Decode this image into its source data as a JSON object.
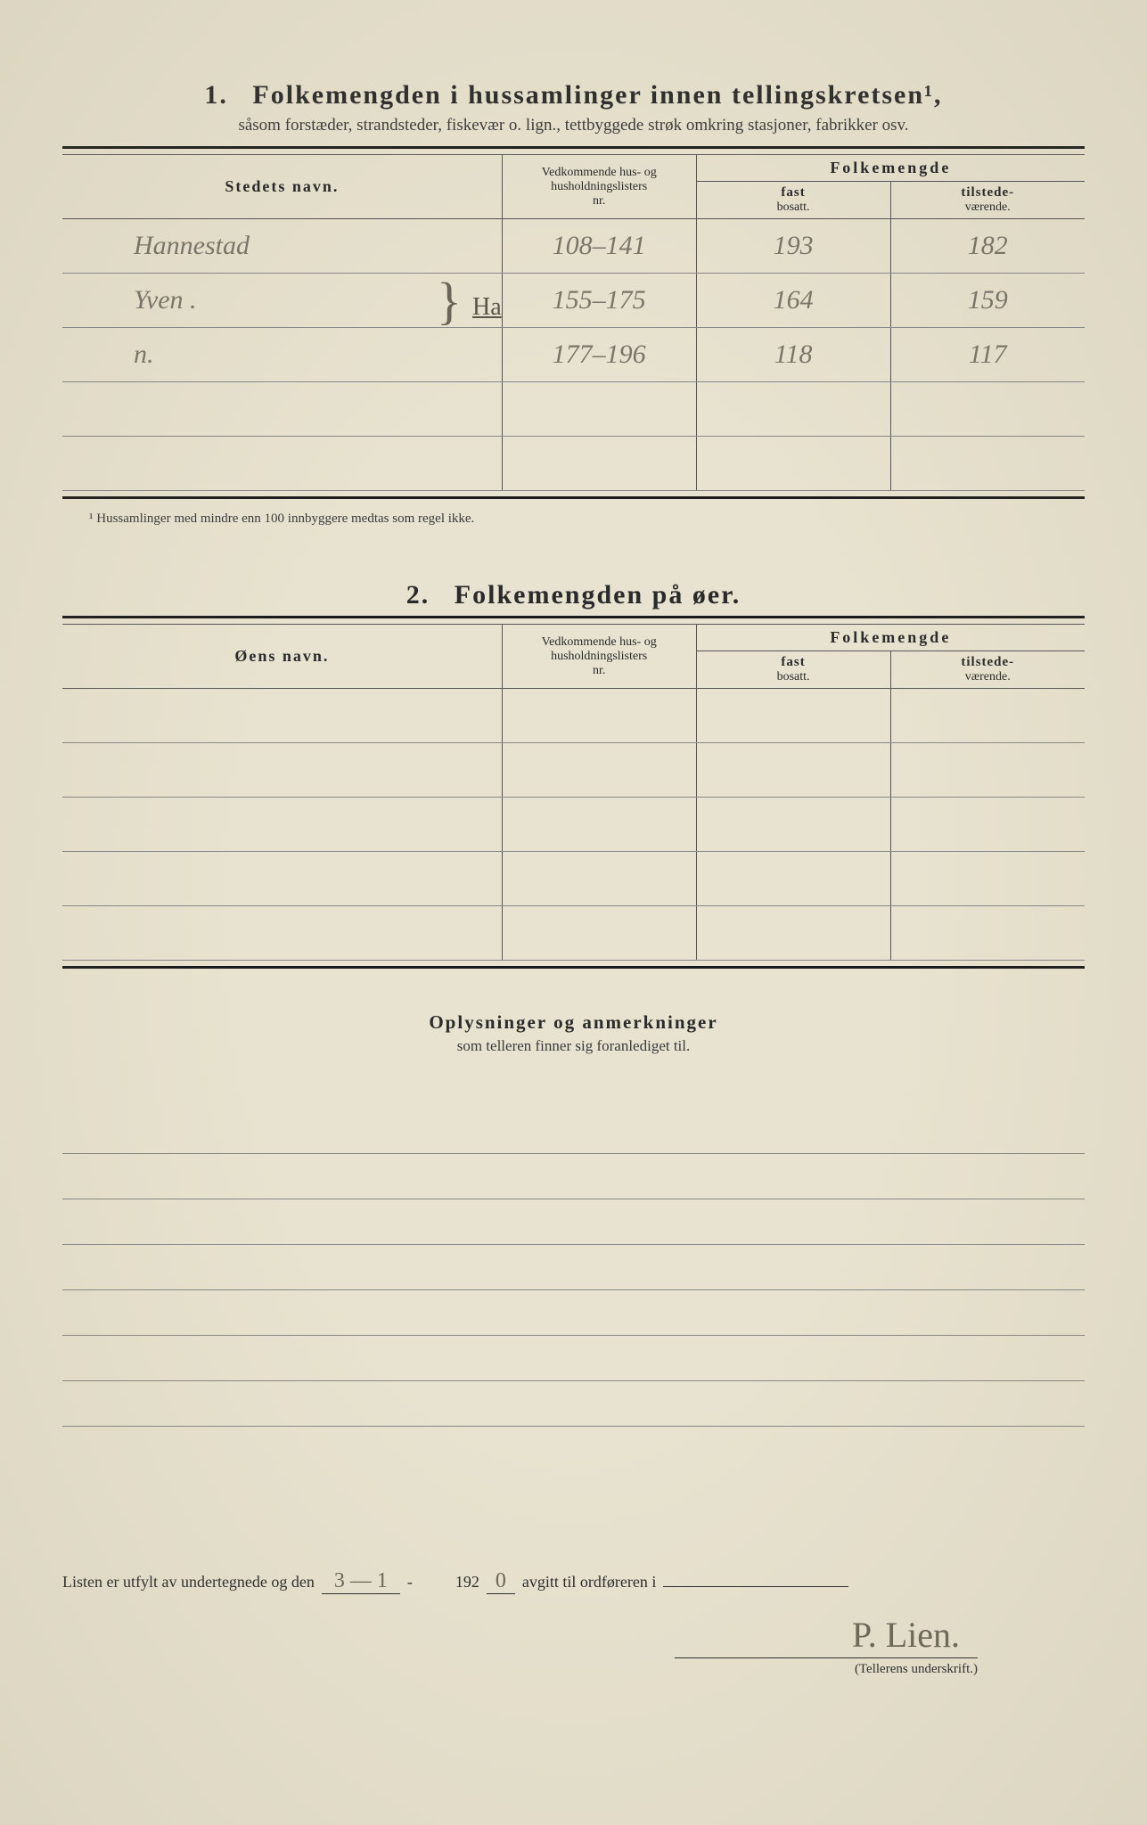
{
  "section1": {
    "number": "1.",
    "title": "Folkemengden i hussamlinger innen tellingskretsen¹,",
    "subtitle": "såsom forstæder, strandsteder, fiskevær o. lign., tettbyggede strøk omkring stasjoner, fabrikker osv.",
    "col_place": "Stedets navn.",
    "col_ref_l1": "Vedkommende hus- og",
    "col_ref_l2": "husholdningslisters",
    "col_ref_l3": "nr.",
    "col_folk": "Folkemengde",
    "col_fast_l1": "fast",
    "col_fast_l2": "bosatt.",
    "col_tilst_l1": "tilstede-",
    "col_tilst_l2": "værende.",
    "rows": [
      {
        "place": "Hannestad",
        "ref": "108–141",
        "fast": "193",
        "tilst": "182"
      },
      {
        "place": "Yven .",
        "ref": "155–175",
        "fast": "164",
        "tilst": "159"
      },
      {
        "place": "n.",
        "ref": "177–196",
        "fast": "118",
        "tilst": "117"
      },
      {
        "place": "",
        "ref": "",
        "fast": "",
        "tilst": ""
      },
      {
        "place": "",
        "ref": "",
        "fast": "",
        "tilst": ""
      }
    ],
    "annotation": "Ha",
    "footnote": "¹ Hussamlinger med mindre enn 100 innbyggere medtas som regel ikke."
  },
  "section2": {
    "number": "2.",
    "title": "Folkemengden på øer.",
    "col_place": "Øens navn.",
    "rows": 5
  },
  "notes": {
    "title": "Oplysninger og anmerkninger",
    "sub": "som telleren finner sig foranlediget til.",
    "ruled_lines": 7
  },
  "bottom": {
    "text_pre": "Listen er utfylt av undertegnede og den",
    "date": "3 — 1",
    "text_mid1": "-",
    "year_prefix": "192",
    "year_digit": "0",
    "text_post": "avgitt til ordføreren i",
    "signature": "P. Lien.",
    "sig_caption": "(Tellerens underskrift.)"
  },
  "colors": {
    "paper": "#e8e3d0",
    "ink": "#2a2a2a",
    "pencil": "#7a7568",
    "rule": "#555555"
  }
}
